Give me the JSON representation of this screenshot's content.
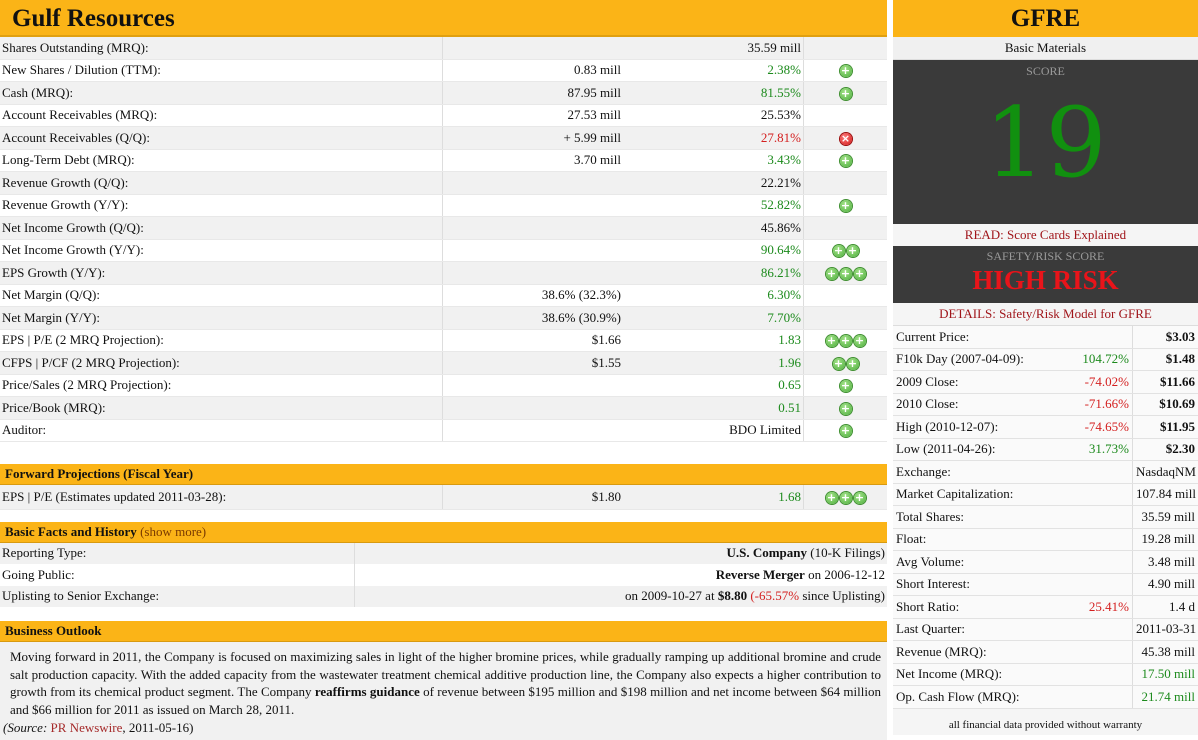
{
  "company_name": "Gulf Resources",
  "metrics": [
    {
      "label": "Shares Outstanding (MRQ):",
      "value": "",
      "metric": "35.59 mill",
      "metric_color": "",
      "icons": []
    },
    {
      "label": "New Shares / Dilution (TTM):",
      "value": "0.83 mill",
      "metric": "2.38%",
      "metric_color": "green",
      "icons": [
        "plus"
      ]
    },
    {
      "label": "Cash (MRQ):",
      "value": "87.95 mill",
      "metric": "81.55%",
      "metric_color": "green",
      "icons": [
        "plus"
      ]
    },
    {
      "label": "Account Receivables (MRQ):",
      "value": "27.53 mill",
      "metric": "25.53%",
      "metric_color": "",
      "icons": []
    },
    {
      "label": "Account Receivables (Q/Q):",
      "value": "+ 5.99 mill",
      "metric": "27.81%",
      "metric_color": "red",
      "icons": [
        "x"
      ]
    },
    {
      "label": "Long-Term Debt (MRQ):",
      "value": "3.70 mill",
      "metric": "3.43%",
      "metric_color": "green",
      "icons": [
        "plus"
      ]
    },
    {
      "label": "Revenue Growth (Q/Q):",
      "value": "",
      "metric": "22.21%",
      "metric_color": "",
      "icons": []
    },
    {
      "label": "Revenue Growth (Y/Y):",
      "value": "",
      "metric": "52.82%",
      "metric_color": "green",
      "icons": [
        "plus"
      ]
    },
    {
      "label": "Net Income Growth (Q/Q):",
      "value": "",
      "metric": "45.86%",
      "metric_color": "",
      "icons": []
    },
    {
      "label": "Net Income Growth (Y/Y):",
      "value": "",
      "metric": "90.64%",
      "metric_color": "green",
      "icons": [
        "plus",
        "plus"
      ]
    },
    {
      "label": "EPS Growth (Y/Y):",
      "value": "",
      "metric": "86.21%",
      "metric_color": "green",
      "icons": [
        "plus",
        "plus",
        "plus"
      ]
    },
    {
      "label": "Net Margin (Q/Q):",
      "value": "38.6% (32.3%)",
      "metric": "6.30%",
      "metric_color": "green",
      "icons": []
    },
    {
      "label": "Net Margin (Y/Y):",
      "value": "38.6% (30.9%)",
      "metric": "7.70%",
      "metric_color": "green",
      "icons": []
    },
    {
      "label": "EPS | P/E (2 MRQ Projection):",
      "value": "$1.66",
      "metric": "1.83",
      "metric_color": "green",
      "icons": [
        "plus",
        "plus",
        "plus"
      ]
    },
    {
      "label": "CFPS | P/CF (2 MRQ Projection):",
      "value": "$1.55",
      "metric": "1.96",
      "metric_color": "green",
      "icons": [
        "plus",
        "plus"
      ]
    },
    {
      "label": "Price/Sales (2 MRQ Projection):",
      "value": "",
      "metric": "0.65",
      "metric_color": "green",
      "icons": [
        "plus"
      ]
    },
    {
      "label": "Price/Book (MRQ):",
      "value": "",
      "metric": "0.51",
      "metric_color": "green",
      "icons": [
        "plus"
      ]
    },
    {
      "label": "Auditor:",
      "value": "",
      "metric": "BDO Limited",
      "metric_color": "",
      "icons": [
        "plus"
      ]
    }
  ],
  "forward": {
    "heading": "Forward Projections (Fiscal Year)",
    "label": "EPS | P/E (Estimates updated 2011-03-28):",
    "value": "$1.80",
    "metric": "1.68",
    "icons": [
      "plus",
      "plus",
      "plus"
    ]
  },
  "facts": {
    "heading": "Basic Facts and History",
    "show_more": "(show more)",
    "reporting_label": "Reporting Type:",
    "reporting_bold": "U.S. Company",
    "reporting_rest": " (10-K Filings)",
    "going_label": "Going Public:",
    "going_bold": "Reverse Merger",
    "going_rest": " on 2006-12-12",
    "uplist_label": "Uplisting to Senior Exchange:",
    "uplist_pre": "on 2009-10-27 at ",
    "uplist_price": "$8.80",
    "uplist_change": "(-65.57%",
    "uplist_post": " since Uplisting)"
  },
  "outlook": {
    "heading": "Business Outlook",
    "text_1": "Moving forward in 2011, the Company is focused on maximizing sales in light of the higher bromine prices, while gradually ramping up additional bromine and crude salt production capacity. With the added capacity from the wastewater treatment chemical additive production line, the Company also expects a higher contribution to growth from its chemical product segment. The Company ",
    "text_bold": "reaffirms guidance",
    "text_2": " of revenue between $195 million and $198 million and net income between $64 million and $66 million for 2011 as issued on March 28, 2011.",
    "source_label": "(Source:",
    "source_link": "PR Newswire",
    "source_date": ", 2011-05-16)"
  },
  "sidebar": {
    "ticker": "GFRE",
    "sector": "Basic Materials",
    "score_label": "SCORE",
    "score": "19",
    "read_link": "READ: Score Cards Explained",
    "risk_label": "SAFETY/RISK SCORE",
    "risk_value": "HIGH RISK",
    "details_link": "DETAILS: Safety/Risk Model for GFRE",
    "quote_rows": [
      {
        "label": "Current Price:",
        "pct": "",
        "pct_color": "",
        "value": "$3.03",
        "bold": true
      },
      {
        "label": "F10k Day (2007-04-09):",
        "pct": "104.72%",
        "pct_color": "green",
        "value": "$1.48",
        "bold": true
      },
      {
        "label": "2009 Close:",
        "pct": "-74.02%",
        "pct_color": "red",
        "value": "$11.66",
        "bold": true
      },
      {
        "label": "2010 Close:",
        "pct": "-71.66%",
        "pct_color": "red",
        "value": "$10.69",
        "bold": true
      },
      {
        "label": "High (2010-12-07):",
        "pct": "-74.65%",
        "pct_color": "red",
        "value": "$11.95",
        "bold": true
      },
      {
        "label": "Low (2011-04-26):",
        "pct": "31.73%",
        "pct_color": "green",
        "value": "$2.30",
        "bold": true
      },
      {
        "label": "Exchange:",
        "pct": "",
        "pct_color": "",
        "value": "NasdaqNM",
        "bold": false
      },
      {
        "label": "Market Capitalization:",
        "pct": "",
        "pct_color": "",
        "value": "107.84 mill",
        "bold": false
      },
      {
        "label": "Total Shares:",
        "pct": "",
        "pct_color": "",
        "value": "35.59 mill",
        "bold": false
      },
      {
        "label": "Float:",
        "pct": "",
        "pct_color": "",
        "value": "19.28 mill",
        "bold": false
      },
      {
        "label": "Avg Volume:",
        "pct": "",
        "pct_color": "",
        "value": "3.48 mill",
        "bold": false
      },
      {
        "label": "Short Interest:",
        "pct": "",
        "pct_color": "",
        "value": "4.90 mill",
        "bold": false
      },
      {
        "label": "Short Ratio:",
        "pct": "25.41%",
        "pct_color": "red",
        "value": "1.4 d",
        "bold": false
      },
      {
        "label": "Last Quarter:",
        "pct": "",
        "pct_color": "",
        "value": "2011-03-31",
        "bold": false
      },
      {
        "label": "Revenue (MRQ):",
        "pct": "",
        "pct_color": "",
        "value": "45.38 mill",
        "bold": false
      },
      {
        "label": "Net Income (MRQ):",
        "pct": "",
        "pct_color": "",
        "value": "17.50 mill",
        "bold": false,
        "value_color": "green"
      },
      {
        "label": "Op. Cash Flow (MRQ):",
        "pct": "",
        "pct_color": "",
        "value": "21.74 mill",
        "bold": false,
        "value_color": "green"
      }
    ],
    "warranty": "all financial data provided without warranty"
  },
  "colors": {
    "accent": "#fbb417",
    "positive": "#1c8a1c",
    "negative": "#d42020",
    "score_green": "#11900f",
    "risk_red": "#e8141a",
    "panel_dark": "#3a3a3a"
  }
}
